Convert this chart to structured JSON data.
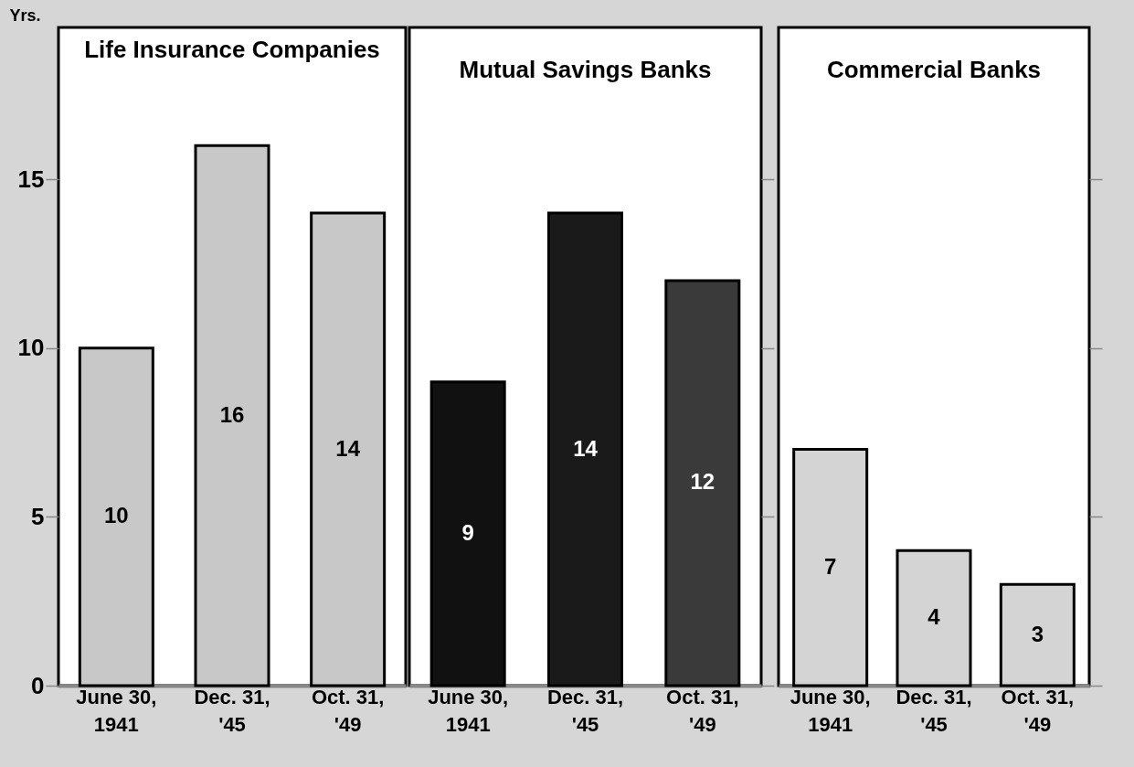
{
  "chart_data": [
    {
      "type": "bar",
      "title": "Life Insurance Companies",
      "ylabel": "Yrs.",
      "categories": [
        "June 30,\n1941",
        "Dec. 31,\n'45",
        "Oct. 31,\n'49"
      ],
      "values": [
        10,
        16,
        14
      ],
      "colors": [
        "#c8c8c8",
        "#c8c8c8",
        "#c8c8c8"
      ],
      "data_labels": true,
      "ylim": [
        0,
        19.5
      ],
      "yticks": [
        0,
        5,
        10,
        15
      ],
      "grid": false,
      "legend": false
    },
    {
      "type": "bar",
      "title": "Mutual Savings Banks",
      "categories": [
        "June 30,\n1941",
        "Dec. 31,\n'45",
        "Oct. 31,\n'49"
      ],
      "values": [
        9,
        14,
        12
      ],
      "colors": [
        "#111111",
        "#1a1a1a",
        "#3a3a3a"
      ],
      "data_labels": true,
      "ylim": [
        0,
        19.5
      ],
      "yticks": [
        0,
        5,
        10,
        15
      ],
      "tick_labels": "x",
      "grid": false,
      "legend": false
    },
    {
      "type": "bar",
      "title": "Commercial Banks",
      "categories": [
        "June 30,\n1941",
        "Dec. 31,\n'45",
        "Oct. 31,\n'49"
      ],
      "values": [
        7,
        4,
        3
      ],
      "colors": [
        "#d4d4d4",
        "#d4d4d4",
        "#d4d4d4"
      ],
      "data_labels": true,
      "ylim": [
        0,
        19.5
      ],
      "yticks": [
        0,
        5,
        10,
        15
      ],
      "tick_labels": "x",
      "grid": false,
      "legend": false
    }
  ]
}
